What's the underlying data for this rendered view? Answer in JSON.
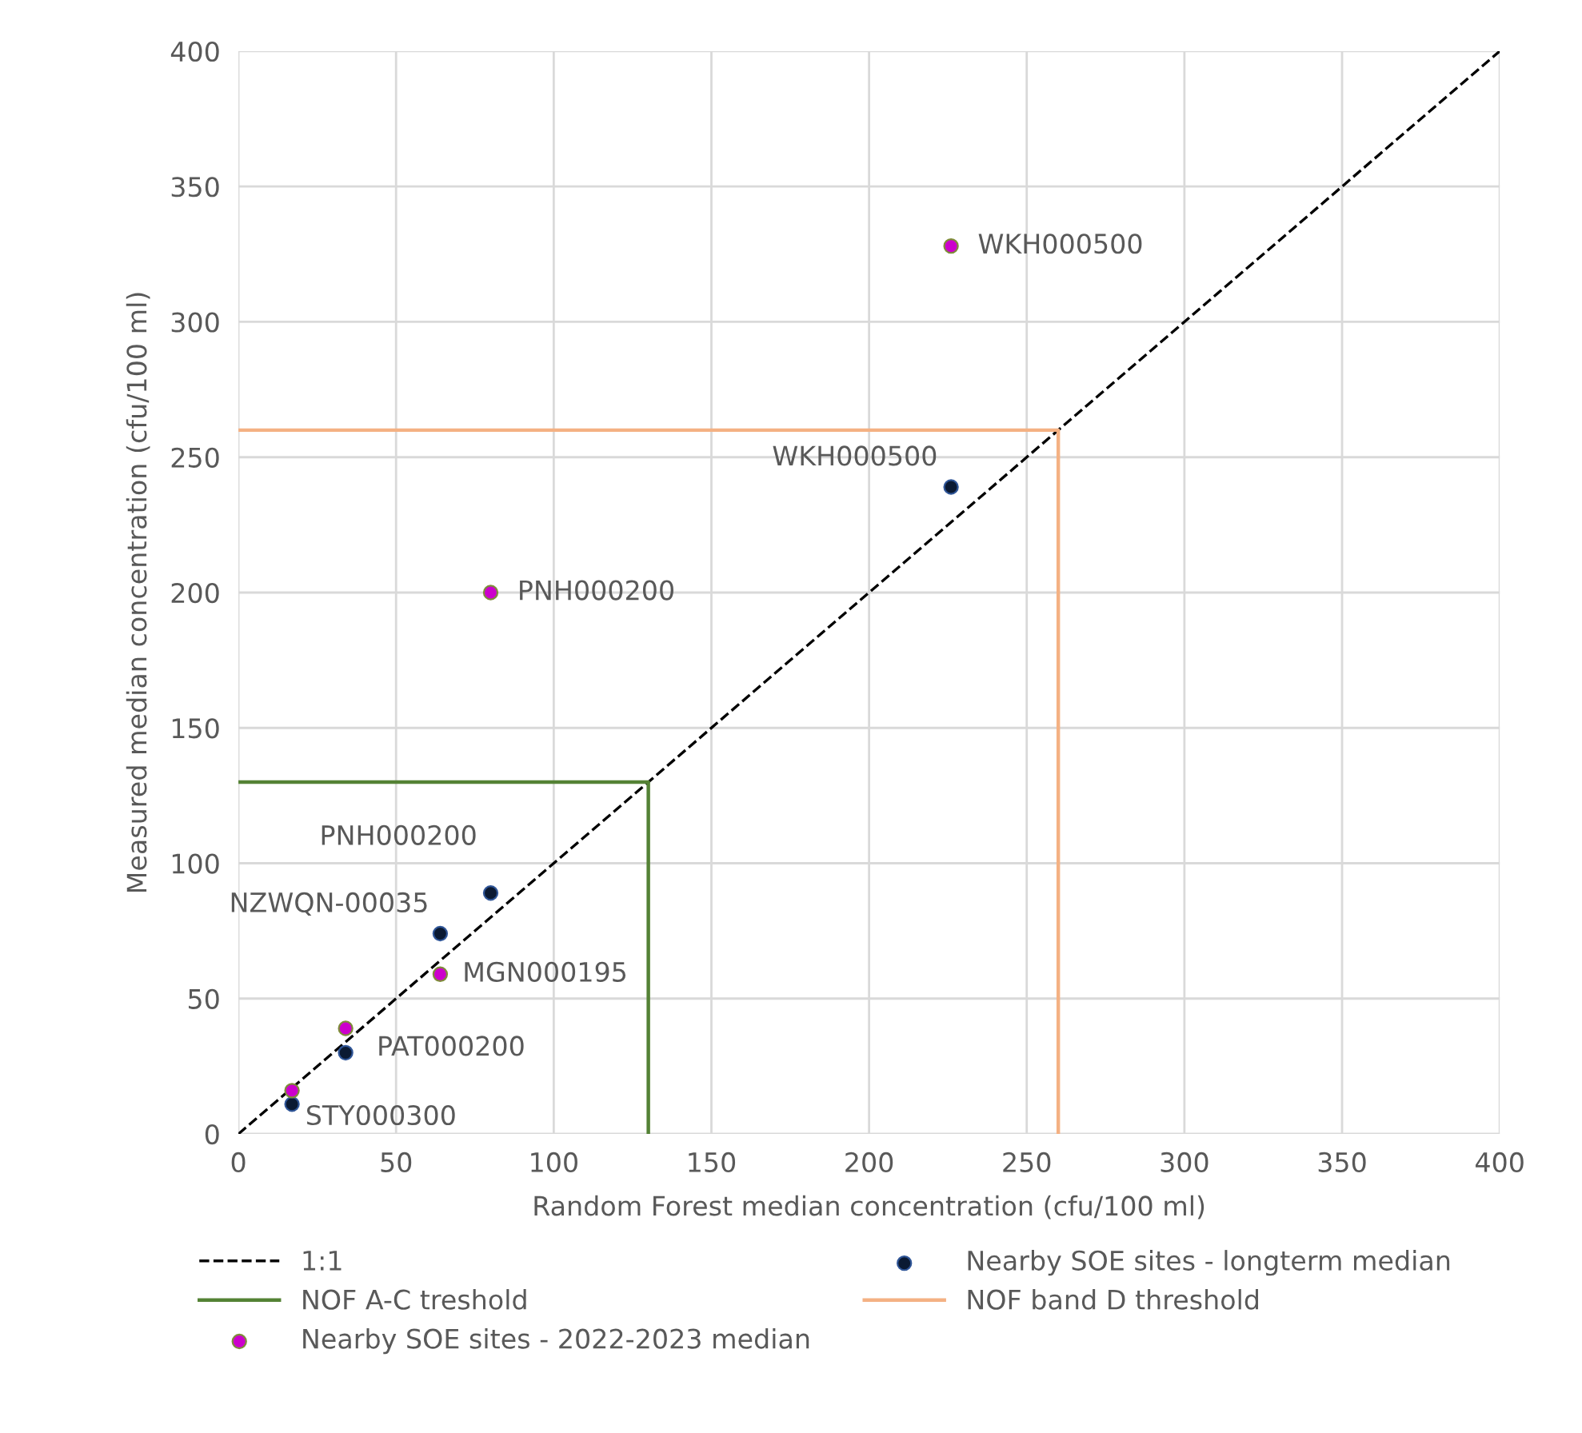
{
  "chart_data": {
    "type": "scatter",
    "xlabel": "Random Forest median concentration (cfu/100 ml)",
    "ylabel": "Measured median concentration (cfu/100 ml)",
    "xlim": [
      0,
      400
    ],
    "ylim": [
      0,
      400
    ],
    "xticks": [
      0,
      50,
      100,
      150,
      200,
      250,
      300,
      350,
      400
    ],
    "yticks": [
      0,
      50,
      100,
      150,
      200,
      250,
      300,
      350,
      400
    ],
    "grid": true,
    "legend": "bottom",
    "series": [
      {
        "name": "1:1",
        "type": "line",
        "line_style": "dashed",
        "marker": "none",
        "color": "#000000",
        "x": [
          0,
          400
        ],
        "values": [
          0,
          400
        ]
      },
      {
        "name": "Nearby SOE sites - longterm median",
        "marker": "circle",
        "color": "#0b1a33",
        "x": [
          17,
          34,
          64,
          80,
          226
        ],
        "values": [
          11,
          30,
          74,
          89,
          239
        ]
      },
      {
        "name": "NOF A-C treshold",
        "type": "line",
        "line_style": "solid",
        "marker": "none",
        "color": "#548235",
        "x": [
          0,
          130,
          130
        ],
        "values": [
          130,
          130,
          0
        ]
      },
      {
        "name": "NOF band D threshold",
        "type": "line",
        "line_style": "solid",
        "marker": "none",
        "color": "#f4b183",
        "x": [
          0,
          260,
          260
        ],
        "values": [
          260,
          260,
          0
        ]
      },
      {
        "name": "Nearby SOE sites - 2022-2023 median",
        "marker": "circle",
        "color": "#cc00cc",
        "x": [
          17,
          34,
          64,
          80,
          226
        ],
        "values": [
          16,
          39,
          59,
          200,
          328
        ]
      }
    ],
    "annotations": [
      {
        "text": "STY000300",
        "x": 17,
        "y": 11
      },
      {
        "text": "PAT000200",
        "x": 34,
        "y": 30
      },
      {
        "text": "NZWQN-00035",
        "x": 64,
        "y": 74
      },
      {
        "text": "PNH000200",
        "x": 80,
        "y": 89
      },
      {
        "text": "WKH000500",
        "x": 226,
        "y": 239
      },
      {
        "text": "MGN000195",
        "x": 64,
        "y": 59
      },
      {
        "text": "PNH000200",
        "x": 80,
        "y": 200
      },
      {
        "text": "WKH000500",
        "x": 226,
        "y": 328
      }
    ]
  }
}
